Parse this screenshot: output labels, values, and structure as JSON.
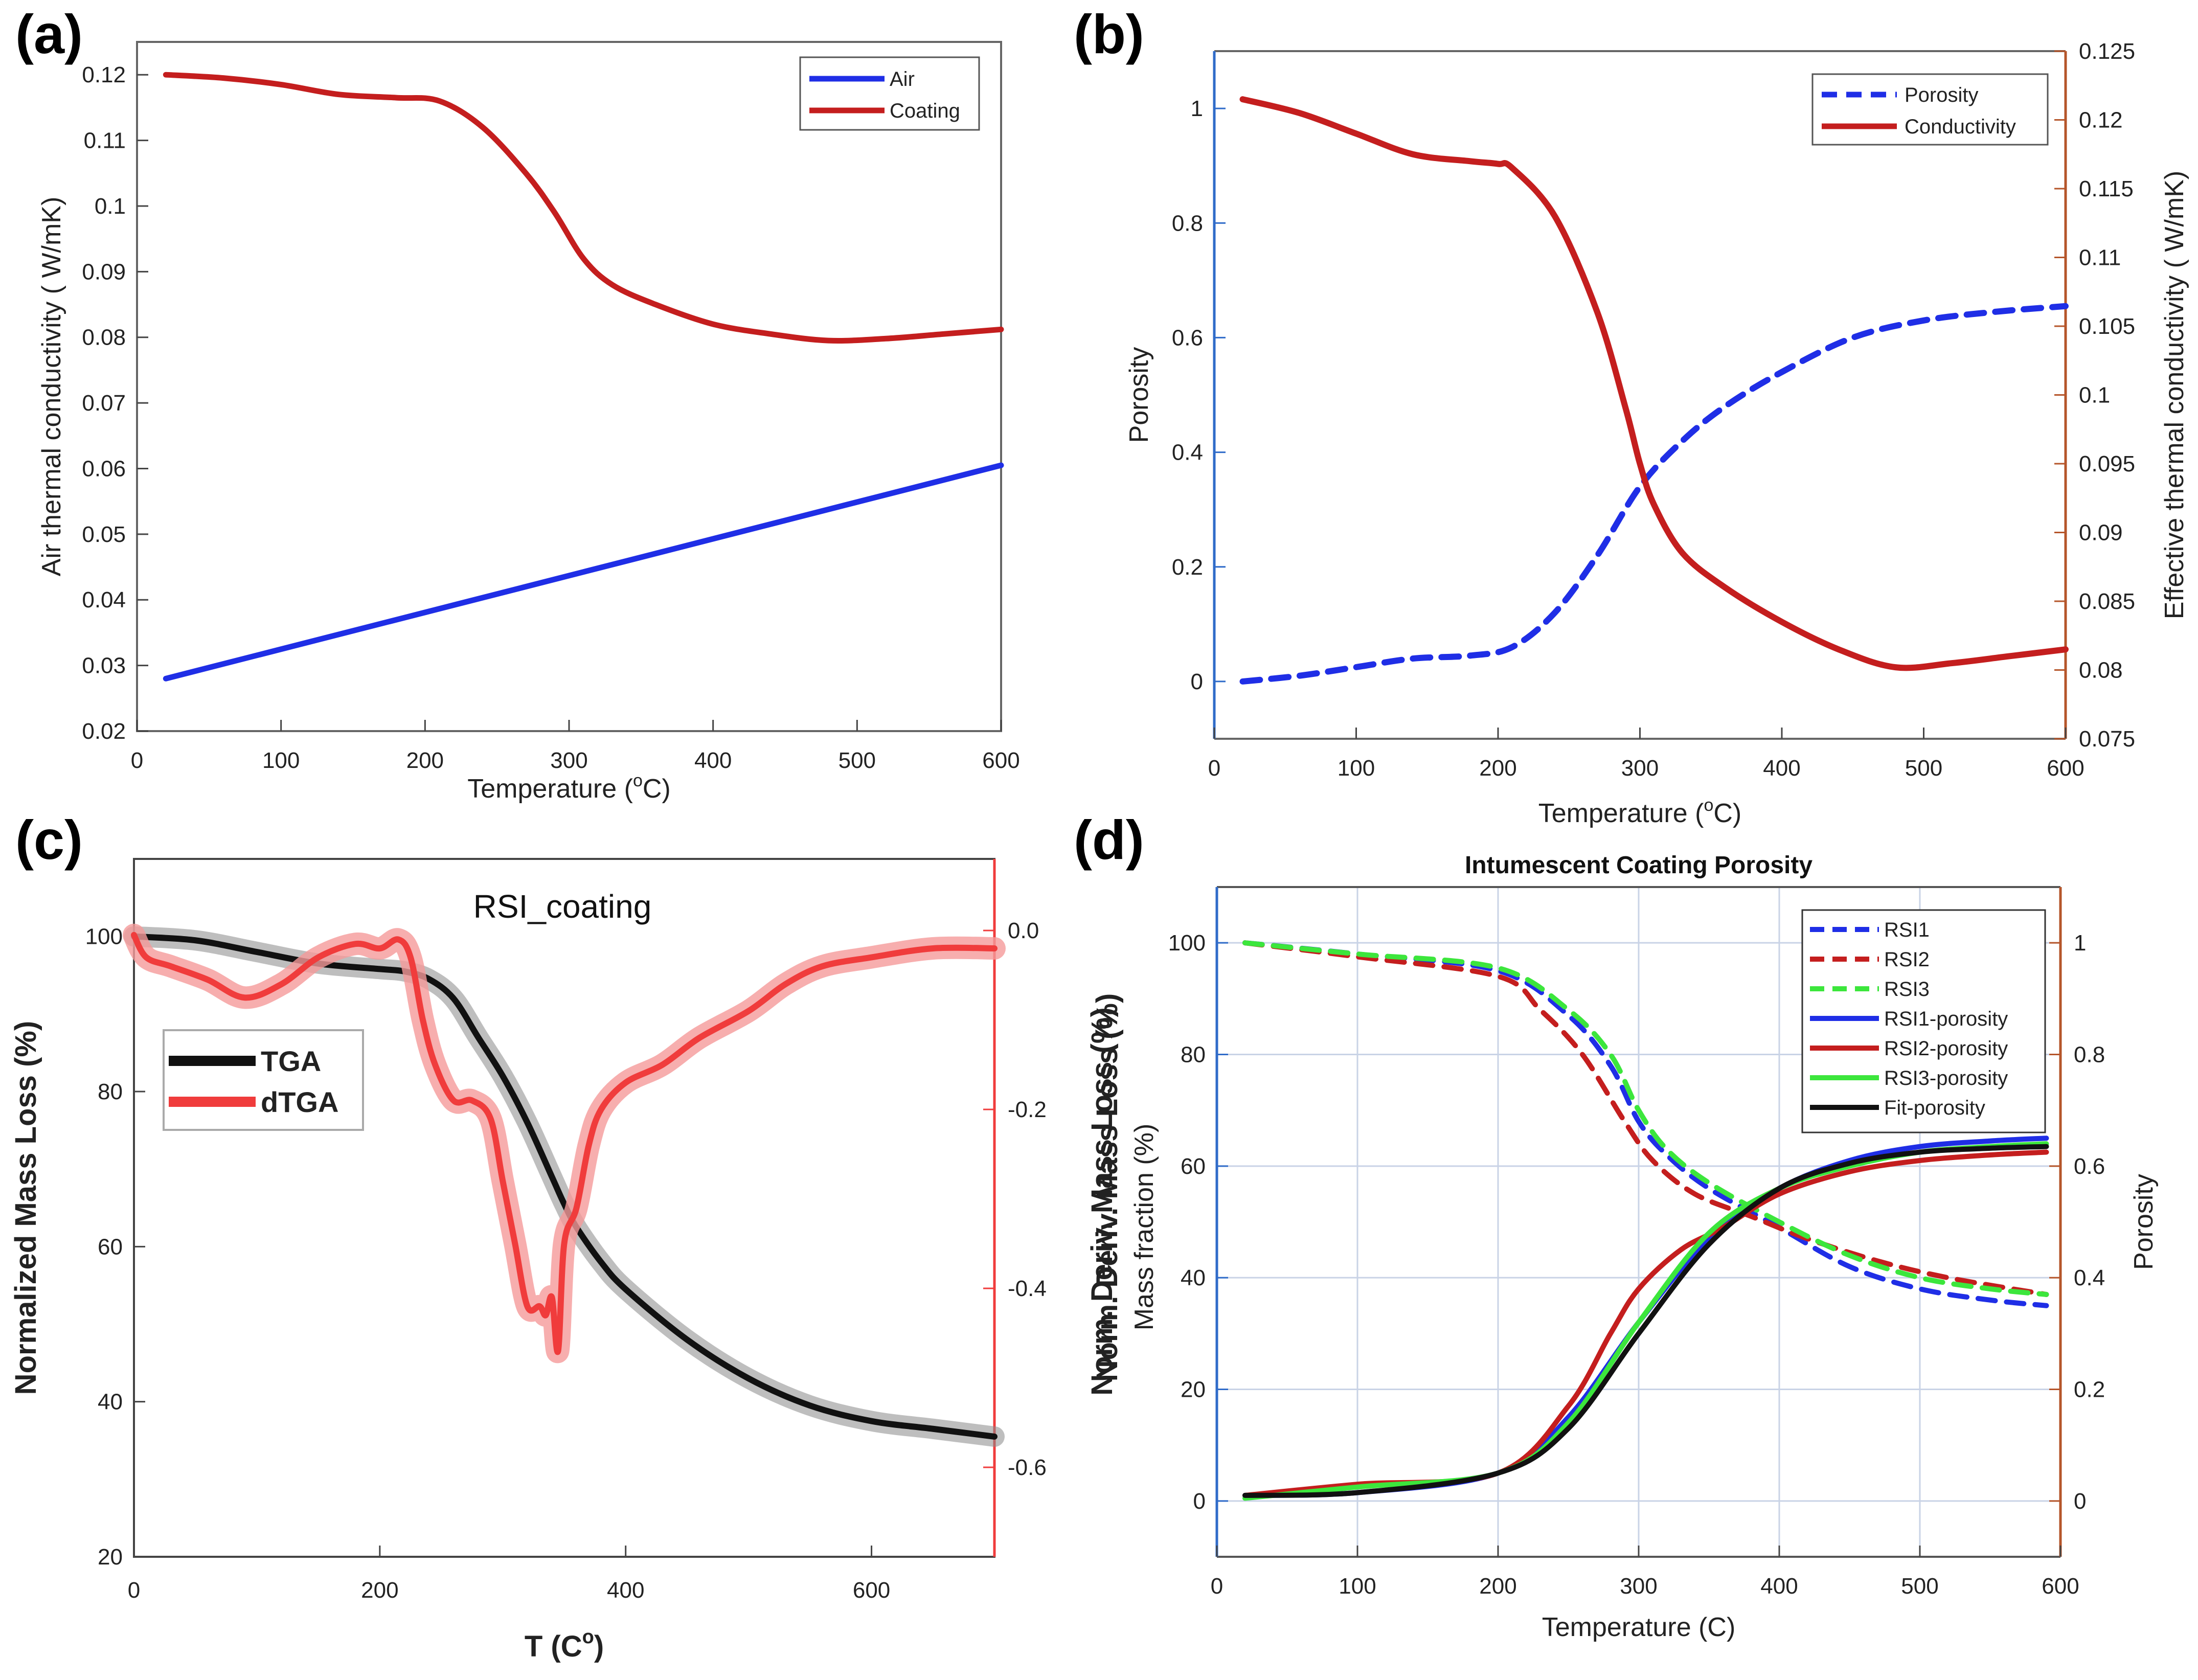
{
  "panel_labels": [
    "(a)",
    "(b)",
    "(c)",
    "(d)"
  ],
  "colors": {
    "blue": "#1f2ee6",
    "red": "#c41e1e",
    "brown": "#b5552a",
    "axis_blue": "#2f6bc9",
    "green": "#3ce63c",
    "bright_red": "#f03c3c",
    "black": "#111111",
    "grid": "#c9d3e6"
  },
  "chart_data": [
    {
      "panel": "(a)",
      "type": "line",
      "xlabel_main": "Temperature (",
      "xlabel_sup": "o",
      "xlabel_end": "C)",
      "ylabel": "Air thermal conductivity ( W/mK)",
      "xlim": [
        0,
        600
      ],
      "ylim": [
        0.02,
        0.125
      ],
      "xticks": [
        0,
        100,
        200,
        300,
        400,
        500,
        600
      ],
      "yticks": [
        0.02,
        0.03,
        0.04,
        0.05,
        0.06,
        0.07,
        0.08,
        0.09,
        0.1,
        0.11,
        0.12
      ],
      "ytick_labels": [
        "0.02",
        "0.03",
        "0.04",
        "0.05",
        "0.06",
        "0.07",
        "0.08",
        "0.09",
        "0.1",
        "0.11",
        "0.12"
      ],
      "legend": [
        "Air",
        "Coating"
      ],
      "series": [
        {
          "name": "Air",
          "color": "blue",
          "style": "solid",
          "x": [
            20,
            600
          ],
          "y": [
            0.028,
            0.0605
          ]
        },
        {
          "name": "Coating",
          "color": "red",
          "style": "solid",
          "x": [
            20,
            60,
            100,
            140,
            180,
            210,
            240,
            270,
            290,
            310,
            330,
            360,
            400,
            440,
            480,
            520,
            560,
            600
          ],
          "y": [
            0.12,
            0.1195,
            0.1185,
            0.117,
            0.1165,
            0.116,
            0.112,
            0.105,
            0.099,
            0.092,
            0.088,
            0.085,
            0.082,
            0.0805,
            0.0795,
            0.0798,
            0.0805,
            0.0812
          ]
        }
      ]
    },
    {
      "panel": "(b)",
      "type": "line",
      "xlabel_main": "Temperature (",
      "xlabel_sup": "o",
      "xlabel_end": "C)",
      "ylabel_left": "Porosity",
      "ylabel_right": "Effective thermal conductivity ( W/mK)",
      "xlim": [
        0,
        600
      ],
      "ylim_left": [
        -0.1,
        1.1
      ],
      "ylim_right": [
        0.075,
        0.125
      ],
      "xticks": [
        0,
        100,
        200,
        300,
        400,
        500,
        600
      ],
      "yticks_left": [
        0,
        0.2,
        0.4,
        0.6,
        0.8,
        1
      ],
      "ytick_labels_left": [
        "0",
        "0.2",
        "0.4",
        "0.6",
        "0.8",
        "1"
      ],
      "yticks_right": [
        0.075,
        0.08,
        0.085,
        0.09,
        0.095,
        0.1,
        0.105,
        0.11,
        0.115,
        0.12,
        0.125
      ],
      "ytick_labels_right": [
        "0.075",
        "0.08",
        "0.085",
        "0.09",
        "0.095",
        "0.1",
        "0.105",
        "0.11",
        "0.115",
        "0.12",
        "0.125"
      ],
      "legend": [
        "Porosity",
        "Conductivity"
      ],
      "series": [
        {
          "name": "Porosity",
          "axis": "left",
          "color": "blue",
          "style": "dashed",
          "x": [
            20,
            60,
            100,
            140,
            180,
            210,
            240,
            270,
            300,
            330,
            360,
            400,
            450,
            500,
            550,
            600
          ],
          "y": [
            0.0,
            0.01,
            0.025,
            0.04,
            0.045,
            0.06,
            0.12,
            0.22,
            0.34,
            0.42,
            0.48,
            0.54,
            0.6,
            0.63,
            0.645,
            0.655
          ]
        },
        {
          "name": "Conductivity",
          "axis": "right",
          "color": "red",
          "style": "solid",
          "x": [
            20,
            60,
            100,
            140,
            180,
            200,
            210,
            240,
            270,
            290,
            300,
            310,
            330,
            360,
            400,
            440,
            480,
            520,
            560,
            600
          ],
          "y": [
            0.1215,
            0.1205,
            0.119,
            0.1175,
            0.117,
            0.1168,
            0.1165,
            0.113,
            0.106,
            0.099,
            0.095,
            0.092,
            0.0885,
            0.086,
            0.0835,
            0.0815,
            0.0802,
            0.0805,
            0.081,
            0.0815
          ]
        }
      ]
    },
    {
      "panel": "(c)",
      "type": "line",
      "title": "RSI_coating",
      "xlabel_main": "T (C",
      "xlabel_sup": "o",
      "xlabel_end": ")",
      "ylabel_left": "Normalized Mass Loss (%)",
      "ylabel_right": "Norm. Deriv. Mass Loss (%)",
      "xlim": [
        0,
        700
      ],
      "ylim_left": [
        20,
        110
      ],
      "ylim_right": [
        -0.7,
        0.08
      ],
      "xticks": [
        0,
        200,
        400,
        600
      ],
      "yticks_left": [
        20,
        40,
        60,
        80,
        100
      ],
      "ytick_labels_left": [
        "20",
        "40",
        "60",
        "80",
        "100"
      ],
      "yticks_right": [
        0.0,
        -0.2,
        -0.4,
        -0.6
      ],
      "ytick_labels_right": [
        "0.0",
        "-0.2",
        "-0.4",
        "-0.6"
      ],
      "legend": [
        "TGA",
        "dTGA"
      ],
      "series": [
        {
          "name": "TGA",
          "axis": "left",
          "color": "black",
          "style": "band",
          "x": [
            0,
            50,
            100,
            150,
            200,
            220,
            240,
            260,
            280,
            300,
            320,
            340,
            350,
            360,
            380,
            400,
            450,
            500,
            550,
            600,
            650,
            700
          ],
          "y": [
            100,
            99.5,
            98,
            96.5,
            95.8,
            95.5,
            94.5,
            92,
            87,
            82,
            76,
            69,
            65.5,
            62.5,
            58,
            54.5,
            48,
            43,
            39.5,
            37.5,
            36.5,
            35.5
          ]
        },
        {
          "name": "dTGA",
          "axis": "right",
          "color": "bright_red",
          "style": "band",
          "x": [
            0,
            10,
            30,
            60,
            90,
            120,
            150,
            180,
            200,
            215,
            225,
            235,
            245,
            260,
            275,
            290,
            300,
            310,
            320,
            330,
            335,
            340,
            345,
            350,
            360,
            370,
            380,
            400,
            430,
            460,
            500,
            530,
            560,
            600,
            650,
            700
          ],
          "y": [
            -0.005,
            -0.03,
            -0.04,
            -0.055,
            -0.075,
            -0.06,
            -0.03,
            -0.015,
            -0.02,
            -0.01,
            -0.03,
            -0.1,
            -0.15,
            -0.19,
            -0.19,
            -0.21,
            -0.28,
            -0.35,
            -0.42,
            -0.42,
            -0.43,
            -0.41,
            -0.47,
            -0.35,
            -0.31,
            -0.24,
            -0.2,
            -0.17,
            -0.15,
            -0.12,
            -0.09,
            -0.06,
            -0.04,
            -0.03,
            -0.02,
            -0.02
          ]
        }
      ]
    },
    {
      "panel": "(d)",
      "type": "line",
      "title": "Intumescent Coating Porosity",
      "xlabel": "Temperature (C)",
      "ylabel_left": "Mass fraction (%)",
      "ylabel_left_outer": "Norm. Deriv. Mass Loss (%)",
      "ylabel_right": "Porosity",
      "xlim": [
        0,
        600
      ],
      "ylim_left": [
        -10,
        110
      ],
      "ylim_right": [
        -0.1,
        1.1
      ],
      "grid": true,
      "xticks": [
        0,
        100,
        200,
        300,
        400,
        500,
        600
      ],
      "yticks_left": [
        0,
        20,
        40,
        60,
        80,
        100
      ],
      "ytick_labels_left": [
        "0",
        "20",
        "40",
        "60",
        "80",
        "100"
      ],
      "yticks_right": [
        0,
        0.2,
        0.4,
        0.6,
        0.8,
        1
      ],
      "ytick_labels_right": [
        "0",
        "0.2",
        "0.4",
        "0.6",
        "0.8",
        "1"
      ],
      "legend": [
        "RSI1",
        "RSI2",
        "RSI3",
        "RSI1-porosity",
        "RSI2-porosity",
        "RSI3-porosity",
        "Fit-porosity"
      ],
      "series": [
        {
          "name": "RSI1",
          "axis": "left",
          "color": "blue",
          "style": "dashed",
          "x": [
            20,
            100,
            200,
            250,
            280,
            300,
            320,
            350,
            400,
            450,
            500,
            550,
            590
          ],
          "y": [
            100,
            98,
            95,
            87,
            78,
            68,
            62,
            56,
            49,
            42,
            38,
            36,
            35
          ]
        },
        {
          "name": "RSI2",
          "axis": "left",
          "color": "red",
          "style": "dashed",
          "x": [
            20,
            100,
            200,
            230,
            260,
            290,
            310,
            340,
            380,
            420,
            470,
            520,
            590
          ],
          "y": [
            100,
            97.5,
            94,
            88,
            80,
            68,
            61,
            55,
            51,
            47,
            43,
            40,
            37
          ]
        },
        {
          "name": "RSI3",
          "axis": "left",
          "color": "green",
          "style": "dashed",
          "x": [
            20,
            100,
            200,
            250,
            280,
            300,
            320,
            350,
            400,
            450,
            500,
            550,
            590
          ],
          "y": [
            100,
            98,
            95.5,
            88,
            80,
            70,
            63,
            57,
            50,
            44,
            40,
            38,
            37
          ]
        },
        {
          "name": "RSI1-porosity",
          "axis": "right",
          "color": "blue",
          "style": "solid",
          "x": [
            20,
            100,
            200,
            250,
            300,
            350,
            400,
            450,
            500,
            550,
            590
          ],
          "y": [
            0.01,
            0.015,
            0.05,
            0.15,
            0.32,
            0.47,
            0.56,
            0.61,
            0.635,
            0.645,
            0.65
          ]
        },
        {
          "name": "RSI2-porosity",
          "axis": "right",
          "color": "red",
          "style": "solid",
          "x": [
            20,
            100,
            200,
            250,
            280,
            300,
            330,
            360,
            400,
            450,
            500,
            550,
            590
          ],
          "y": [
            0.01,
            0.03,
            0.05,
            0.17,
            0.3,
            0.38,
            0.45,
            0.49,
            0.55,
            0.59,
            0.61,
            0.62,
            0.625
          ]
        },
        {
          "name": "RSI3-porosity",
          "axis": "right",
          "color": "green",
          "style": "solid",
          "x": [
            20,
            100,
            200,
            250,
            300,
            350,
            400,
            450,
            500,
            550,
            590
          ],
          "y": [
            0.005,
            0.025,
            0.05,
            0.14,
            0.32,
            0.48,
            0.56,
            0.6,
            0.625,
            0.635,
            0.64
          ]
        },
        {
          "name": "Fit-porosity",
          "axis": "right",
          "color": "black",
          "style": "solid",
          "x": [
            20,
            100,
            200,
            250,
            300,
            350,
            400,
            450,
            500,
            550,
            590
          ],
          "y": [
            0.01,
            0.015,
            0.05,
            0.13,
            0.3,
            0.46,
            0.56,
            0.605,
            0.625,
            0.632,
            0.635
          ]
        }
      ]
    }
  ]
}
